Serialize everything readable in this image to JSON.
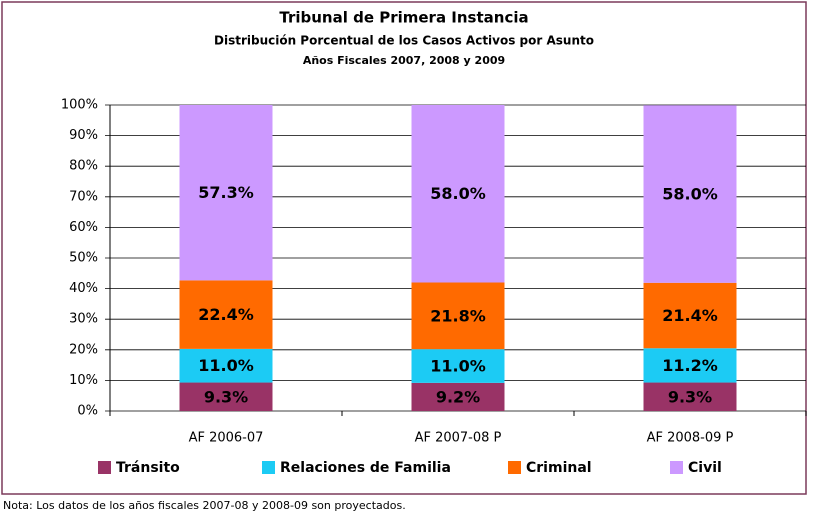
{
  "chart_data": {
    "type": "stacked-bar",
    "title": "Tribunal de Primera Instancia",
    "subtitle": "Distribución Porcentual de los Casos Activos por Asunto",
    "subsubtitle": "Años Fiscales 2007, 2008 y 2009",
    "note": "Nota: Los datos de los años fiscales 2007-08 y 2008-09 son proyectados.",
    "categories": [
      "AF 2006-07",
      "AF 2007-08 P",
      "AF 2008-09 P"
    ],
    "series": [
      {
        "name": "Tránsito",
        "color": "#993366",
        "values": [
          9.3,
          9.2,
          9.3
        ],
        "value_labels": [
          "9.3%",
          "9.2%",
          "9.3%"
        ]
      },
      {
        "name": "Relaciones de Familia",
        "color": "#1ccbf4",
        "values": [
          11.0,
          11.0,
          11.2
        ],
        "value_labels": [
          "11.0%",
          "11.0%",
          "11.2%"
        ]
      },
      {
        "name": "Criminal",
        "color": "#ff6a00",
        "values": [
          22.4,
          21.8,
          21.4
        ],
        "value_labels": [
          "22.4%",
          "21.8%",
          "21.4%"
        ]
      },
      {
        "name": "Civil",
        "color": "#cc99ff",
        "values": [
          57.3,
          58.0,
          58.0
        ],
        "value_labels": [
          "57.3%",
          "58.0%",
          "58.0%"
        ]
      }
    ],
    "ylim": [
      0,
      100
    ],
    "yticks": [
      {
        "value": 0,
        "label": "0%"
      },
      {
        "value": 10,
        "label": "10%"
      },
      {
        "value": 20,
        "label": "20%"
      },
      {
        "value": 30,
        "label": "30%"
      },
      {
        "value": 40,
        "label": "40%"
      },
      {
        "value": 50,
        "label": "50%"
      },
      {
        "value": 60,
        "label": "60%"
      },
      {
        "value": 70,
        "label": "70%"
      },
      {
        "value": 80,
        "label": "80%"
      },
      {
        "value": 90,
        "label": "90%"
      },
      {
        "value": 100,
        "label": "100%"
      }
    ],
    "grid": true,
    "legend": "bottom"
  }
}
